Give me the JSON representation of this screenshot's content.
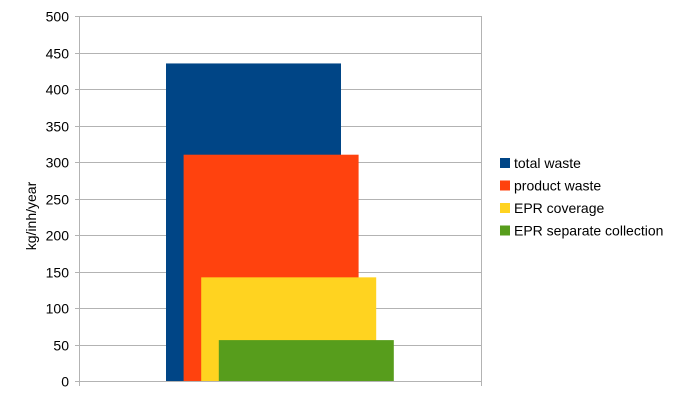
{
  "chart_data": {
    "type": "bar",
    "ylabel": "kg/inh/year",
    "xlabel": "",
    "ylim": [
      0,
      500
    ],
    "yticks": [
      0,
      50,
      100,
      150,
      200,
      250,
      300,
      350,
      400,
      450,
      500
    ],
    "grid": true,
    "legend_position": "right",
    "series": [
      {
        "name": "total waste",
        "values": [
          435
        ],
        "color": "#004586"
      },
      {
        "name": "product waste",
        "values": [
          310
        ],
        "color": "#ff420e"
      },
      {
        "name": "EPR coverage",
        "values": [
          142
        ],
        "color": "#ffd320"
      },
      {
        "name": "EPR separate collection",
        "values": [
          56
        ],
        "color": "#579d1c"
      }
    ]
  }
}
